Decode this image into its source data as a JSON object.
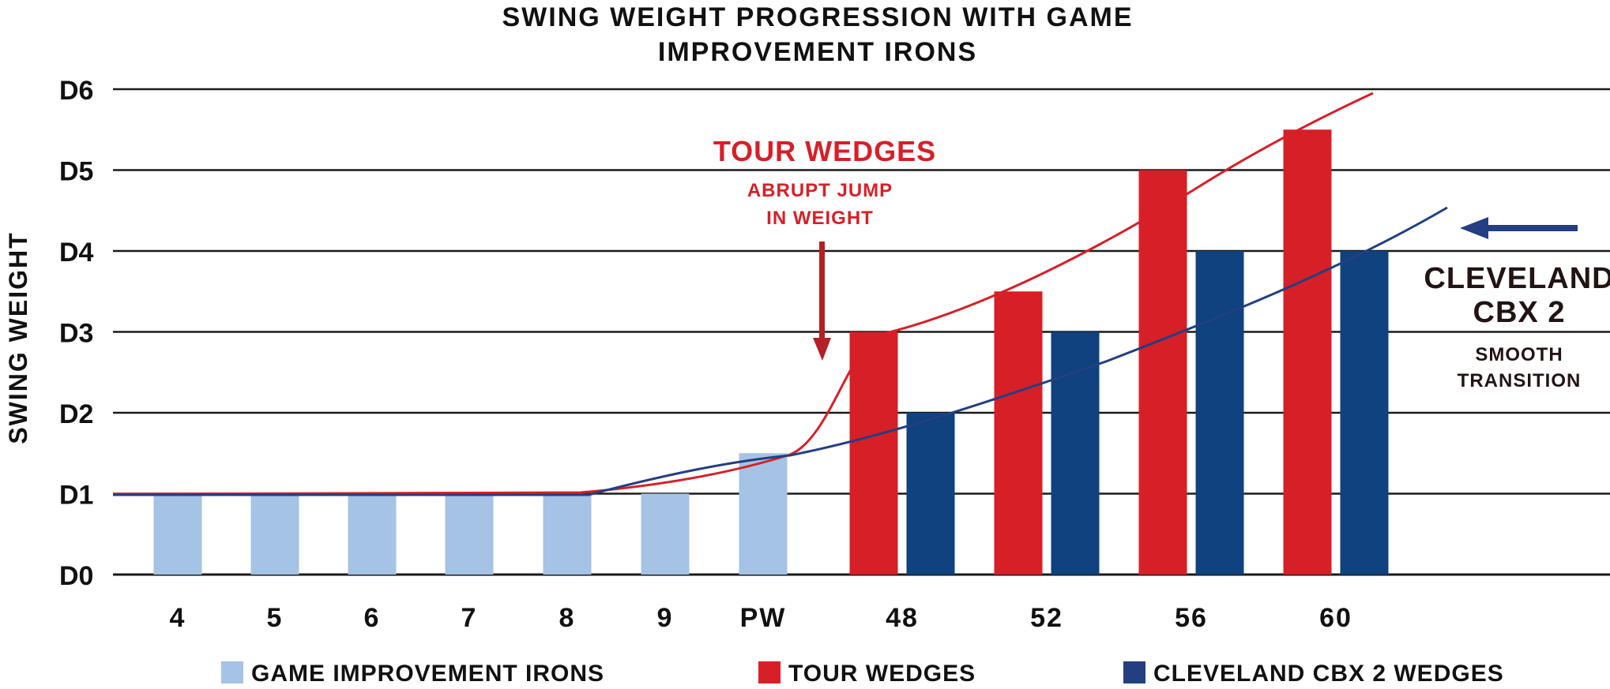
{
  "chart_data": {
    "type": "bar",
    "title_lines": [
      "SWING WEIGHT PROGRESSION WITH GAME",
      "IMPROVEMENT IRONS"
    ],
    "ylabel": "SWING WEIGHT",
    "xlabel": "",
    "y_ticks": [
      "D0",
      "D1",
      "D2",
      "D3",
      "D4",
      "D5",
      "D6"
    ],
    "ylim": [
      0,
      6
    ],
    "grid": true,
    "categories": [
      "4",
      "5",
      "6",
      "7",
      "8",
      "9",
      "PW",
      "48",
      "52",
      "56",
      "60"
    ],
    "series": [
      {
        "name": "GAME IMPROVEMENT IRONS",
        "color": "#a4c3e5",
        "values": [
          1,
          1,
          1,
          1,
          1,
          1,
          1.5,
          null,
          null,
          null,
          null
        ]
      },
      {
        "name": "TOUR WEDGES",
        "color": "#d71f27",
        "values": [
          null,
          null,
          null,
          null,
          null,
          null,
          null,
          3,
          3.5,
          5,
          5.5
        ]
      },
      {
        "name": "CLEVELAND CBX 2 WEDGES",
        "color": "#0f427f",
        "values": [
          null,
          null,
          null,
          null,
          null,
          null,
          null,
          2,
          3,
          4,
          4
        ]
      }
    ],
    "trend_lines": [
      {
        "series": "TOUR WEDGES",
        "color": "#d71f27"
      },
      {
        "series": "CLEVELAND CBX 2 WEDGES",
        "color": "#233f82"
      }
    ],
    "legend_position": "bottom",
    "annotations": {
      "tour": {
        "title": "TOUR WEDGES",
        "sub_lines": [
          "ABRUPT JUMP",
          "IN WEIGHT"
        ],
        "color": "#d71f27"
      },
      "cbx": {
        "title_lines": [
          "CLEVELAND",
          "CBX 2"
        ],
        "sub_lines": [
          "SMOOTH",
          "TRANSITION"
        ],
        "color": "#231414",
        "arrow_color": "#233f82"
      }
    }
  }
}
